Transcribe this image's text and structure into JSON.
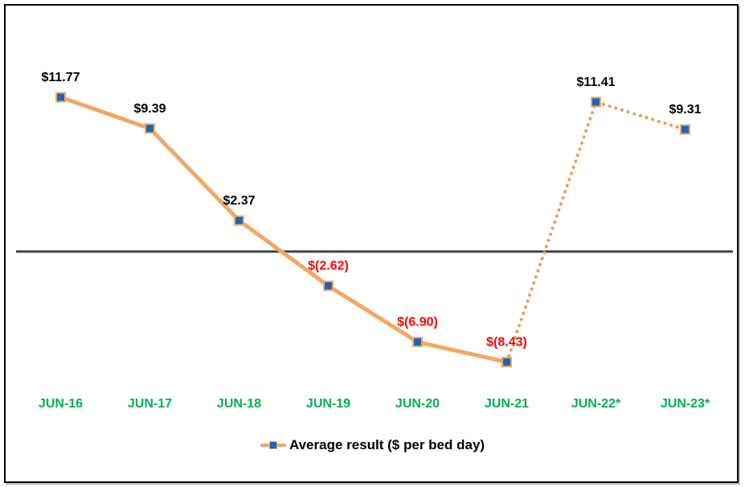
{
  "chart_data": {
    "type": "line",
    "title": "",
    "categories": [
      "JUN-16",
      "JUN-17",
      "JUN-18",
      "JUN-19",
      "JUN-20",
      "JUN-21",
      "JUN-22*",
      "JUN-23*"
    ],
    "series": [
      {
        "name": "Average result ($ per bed day)",
        "values": [
          11.77,
          9.39,
          2.37,
          -2.62,
          -6.9,
          -8.43,
          11.41,
          9.31
        ],
        "labels": [
          "$11.77",
          "$9.39",
          "$2.37",
          "$(2.62)",
          "$(6.90)",
          "$(8.43)",
          "$11.41",
          "$9.31"
        ],
        "solid_until_index": 5
      }
    ],
    "xlabel": "",
    "ylabel": "",
    "ylim": [
      -11,
      15
    ],
    "grid": false,
    "y_axis_visible": false,
    "zero_line_visible": true,
    "legend": {
      "position": "bottom-center",
      "entries": [
        "Average result ($ per bed day)"
      ]
    },
    "colors": {
      "line": "#F5A661",
      "line_dotted": "#F09A50",
      "marker_fill": "#1F64B5",
      "marker_border": "#F0A868",
      "label_positive": "#000000",
      "label_negative": "#FF0000",
      "x_label": "#00B050",
      "zero_line": "#404040",
      "frame_border": "#000000",
      "background": "#FFFFFF"
    }
  }
}
